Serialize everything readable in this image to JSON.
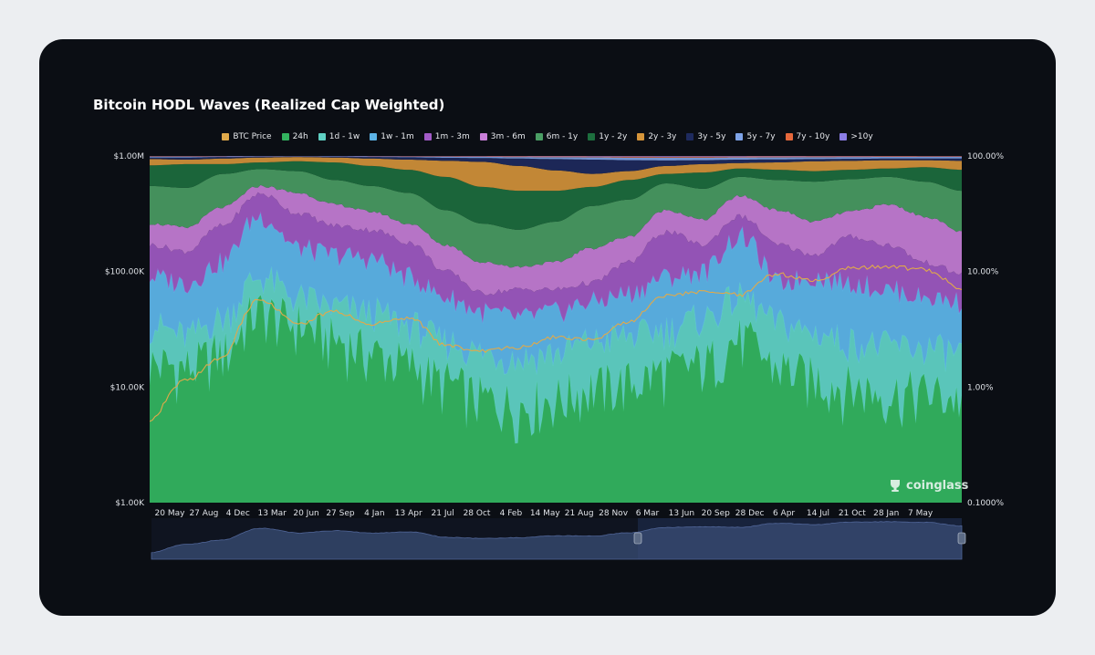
{
  "colors": {
    "background": "#0b0e14",
    "card_outer": "#eceef1",
    "btc_price": "#e0a94a",
    "accent_navigator": "#3a4d75"
  },
  "watermark": {
    "text": "coinglass",
    "icon": "coinglass-logo-icon"
  },
  "chart_data": {
    "type": "area",
    "title": "Bitcoin HODL Waves (Realized Cap Weighted)",
    "stacking": "percent",
    "grid": false,
    "legend_position": "top",
    "x_tick_labels": [
      "20 May",
      "27 Aug",
      "4 Dec",
      "13 Mar",
      "20 Jun",
      "27 Sep",
      "4 Jan",
      "13 Apr",
      "21 Jul",
      "28 Oct",
      "4 Feb",
      "14 May",
      "21 Aug",
      "28 Nov",
      "6 Mar",
      "13 Jun",
      "20 Sep",
      "28 Dec",
      "6 Apr",
      "14 Jul",
      "21 Oct",
      "28 Jan",
      "7 May"
    ],
    "y_left": {
      "scale": "log",
      "range": [
        1000,
        1000000
      ],
      "ticks": [
        "$1.00K",
        "$10.00K",
        "$100.00K",
        "$1.00M"
      ]
    },
    "y_right": {
      "scale": "log",
      "range": [
        0.1,
        100
      ],
      "ticks": [
        "0.1000%",
        "1.00%",
        "10.00%",
        "100.00%"
      ]
    },
    "legend": [
      {
        "name": "BTC Price",
        "color": "#e0a94a"
      },
      {
        "name": "24h",
        "color": "#33b35f"
      },
      {
        "name": "1d - 1w",
        "color": "#5fd0c3"
      },
      {
        "name": "1w - 1m",
        "color": "#5cb3e6"
      },
      {
        "name": "1m - 3m",
        "color": "#a25bc7"
      },
      {
        "name": "3m - 6m",
        "color": "#c97fd9"
      },
      {
        "name": "6m - 1y",
        "color": "#4a9e64"
      },
      {
        "name": "1y - 2y",
        "color": "#1d6f3e"
      },
      {
        "name": "2y - 3y",
        "color": "#d6953a"
      },
      {
        "name": "3y - 5y",
        "color": "#1e2a5e"
      },
      {
        "name": "5y - 7y",
        "color": "#7ea3e8"
      },
      {
        "name": "7y - 10y",
        "color": "#e6683c"
      },
      {
        "name": ">10y",
        "color": "#8b7de6"
      }
    ],
    "cumulative_band_tops_percent": {
      "x": [
        "20 May",
        "27 Aug",
        "4 Dec",
        "13 Mar",
        "20 Jun",
        "27 Sep",
        "4 Jan",
        "13 Apr",
        "21 Jul",
        "28 Oct",
        "4 Feb",
        "14 May",
        "21 Aug",
        "28 Nov",
        "6 Mar",
        "13 Jun",
        "20 Sep",
        "28 Dec",
        "6 Apr",
        "14 Jul",
        "21 Oct",
        "28 Jan",
        "7 May"
      ],
      "24h": [
        1.6,
        1.5,
        2.0,
        4.5,
        3.5,
        2.6,
        2.0,
        1.6,
        1.1,
        0.8,
        0.7,
        0.8,
        1.0,
        1.1,
        1.4,
        1.6,
        2.6,
        1.5,
        1.2,
        1.0,
        0.9,
        0.9,
        0.8
      ],
      "1d - 1w": [
        3.5,
        2.8,
        4.0,
        9.0,
        6.0,
        5.0,
        4.5,
        3.5,
        2.5,
        2.0,
        1.8,
        2.0,
        2.5,
        2.8,
        3.2,
        4.0,
        6.0,
        3.6,
        3.0,
        2.5,
        2.3,
        2.2,
        2.0
      ],
      "1w - 1m": [
        9.0,
        8.0,
        12.0,
        30.0,
        16.0,
        14.0,
        13.0,
        9.0,
        6.0,
        4.5,
        4.0,
        4.5,
        5.5,
        6.5,
        9.0,
        10.0,
        20.0,
        8.0,
        9.0,
        8.0,
        7.0,
        6.0,
        5.5
      ],
      "1m - 3m": [
        17.0,
        15.0,
        25.0,
        47.0,
        32.0,
        25.0,
        23.0,
        18.0,
        10.0,
        6.5,
        7.0,
        7.0,
        8.0,
        12.0,
        22.0,
        17.0,
        30.0,
        17.0,
        14.0,
        20.0,
        17.0,
        12.0,
        9.5
      ],
      "3m - 6m": [
        26.0,
        24.0,
        36.0,
        55.0,
        48.0,
        38.0,
        33.0,
        26.0,
        17.0,
        12.0,
        11.0,
        12.0,
        16.0,
        20.0,
        34.0,
        28.0,
        45.0,
        34.0,
        27.0,
        33.0,
        38.0,
        30.0,
        22.0
      ],
      "6m - 1y": [
        55.0,
        53.0,
        70.0,
        77.0,
        74.0,
        62.0,
        55.0,
        48.0,
        34.0,
        26.0,
        23.0,
        27.0,
        37.0,
        42.0,
        58.0,
        52.0,
        66.0,
        62.0,
        60.0,
        63.0,
        66.0,
        60.0,
        50.0
      ],
      "1y - 2y": [
        83.0,
        85.0,
        85.0,
        88.0,
        90.0,
        88.0,
        82.0,
        76.0,
        66.0,
        54.0,
        50.0,
        50.0,
        54.0,
        62.0,
        70.0,
        72.0,
        78.0,
        76.0,
        74.0,
        76.0,
        78.0,
        80.0,
        76.0
      ],
      "2y - 3y": [
        94.0,
        93.0,
        95.0,
        97.0,
        98.0,
        97.0,
        95.0,
        93.0,
        91.0,
        89.0,
        82.0,
        75.0,
        70.0,
        74.0,
        82.0,
        85.0,
        87.0,
        88.0,
        90.0,
        91.0,
        92.0,
        92.0,
        91.0
      ],
      "3y - 5y": [
        97.0,
        97.0,
        98.0,
        98.5,
        99.0,
        98.7,
        98.0,
        97.5,
        96.5,
        96.0,
        95.0,
        94.0,
        93.0,
        92.0,
        91.5,
        92.0,
        93.0,
        93.5,
        94.0,
        94.5,
        95.0,
        95.0,
        95.0
      ],
      "5y - 7y": [
        98.5,
        98.5,
        99.0,
        99.3,
        99.5,
        99.4,
        99.0,
        98.8,
        98.5,
        98.3,
        98.0,
        97.8,
        97.5,
        97.0,
        96.8,
        97.0,
        97.3,
        97.5,
        97.8,
        98.0,
        98.2,
        98.3,
        98.3
      ],
      "7y - 10y": [
        99.4,
        99.4,
        99.6,
        99.7,
        99.8,
        99.7,
        99.6,
        99.5,
        99.4,
        99.3,
        99.2,
        99.1,
        99.0,
        98.9,
        98.8,
        98.9,
        99.0,
        99.1,
        99.2,
        99.3,
        99.4,
        99.4,
        99.4
      ],
      ">10y": [
        100,
        100,
        100,
        100,
        100,
        100,
        100,
        100,
        100,
        100,
        100,
        100,
        100,
        100,
        100,
        100,
        100,
        100,
        100,
        100,
        100,
        100,
        100
      ]
    },
    "btc_price_usd": [
      5000,
      11500,
      18000,
      57000,
      35000,
      45000,
      35000,
      40000,
      23000,
      20500,
      22000,
      27000,
      26000,
      37000,
      62000,
      67000,
      63000,
      95000,
      83000,
      108000,
      110000,
      104000,
      72000
    ]
  }
}
